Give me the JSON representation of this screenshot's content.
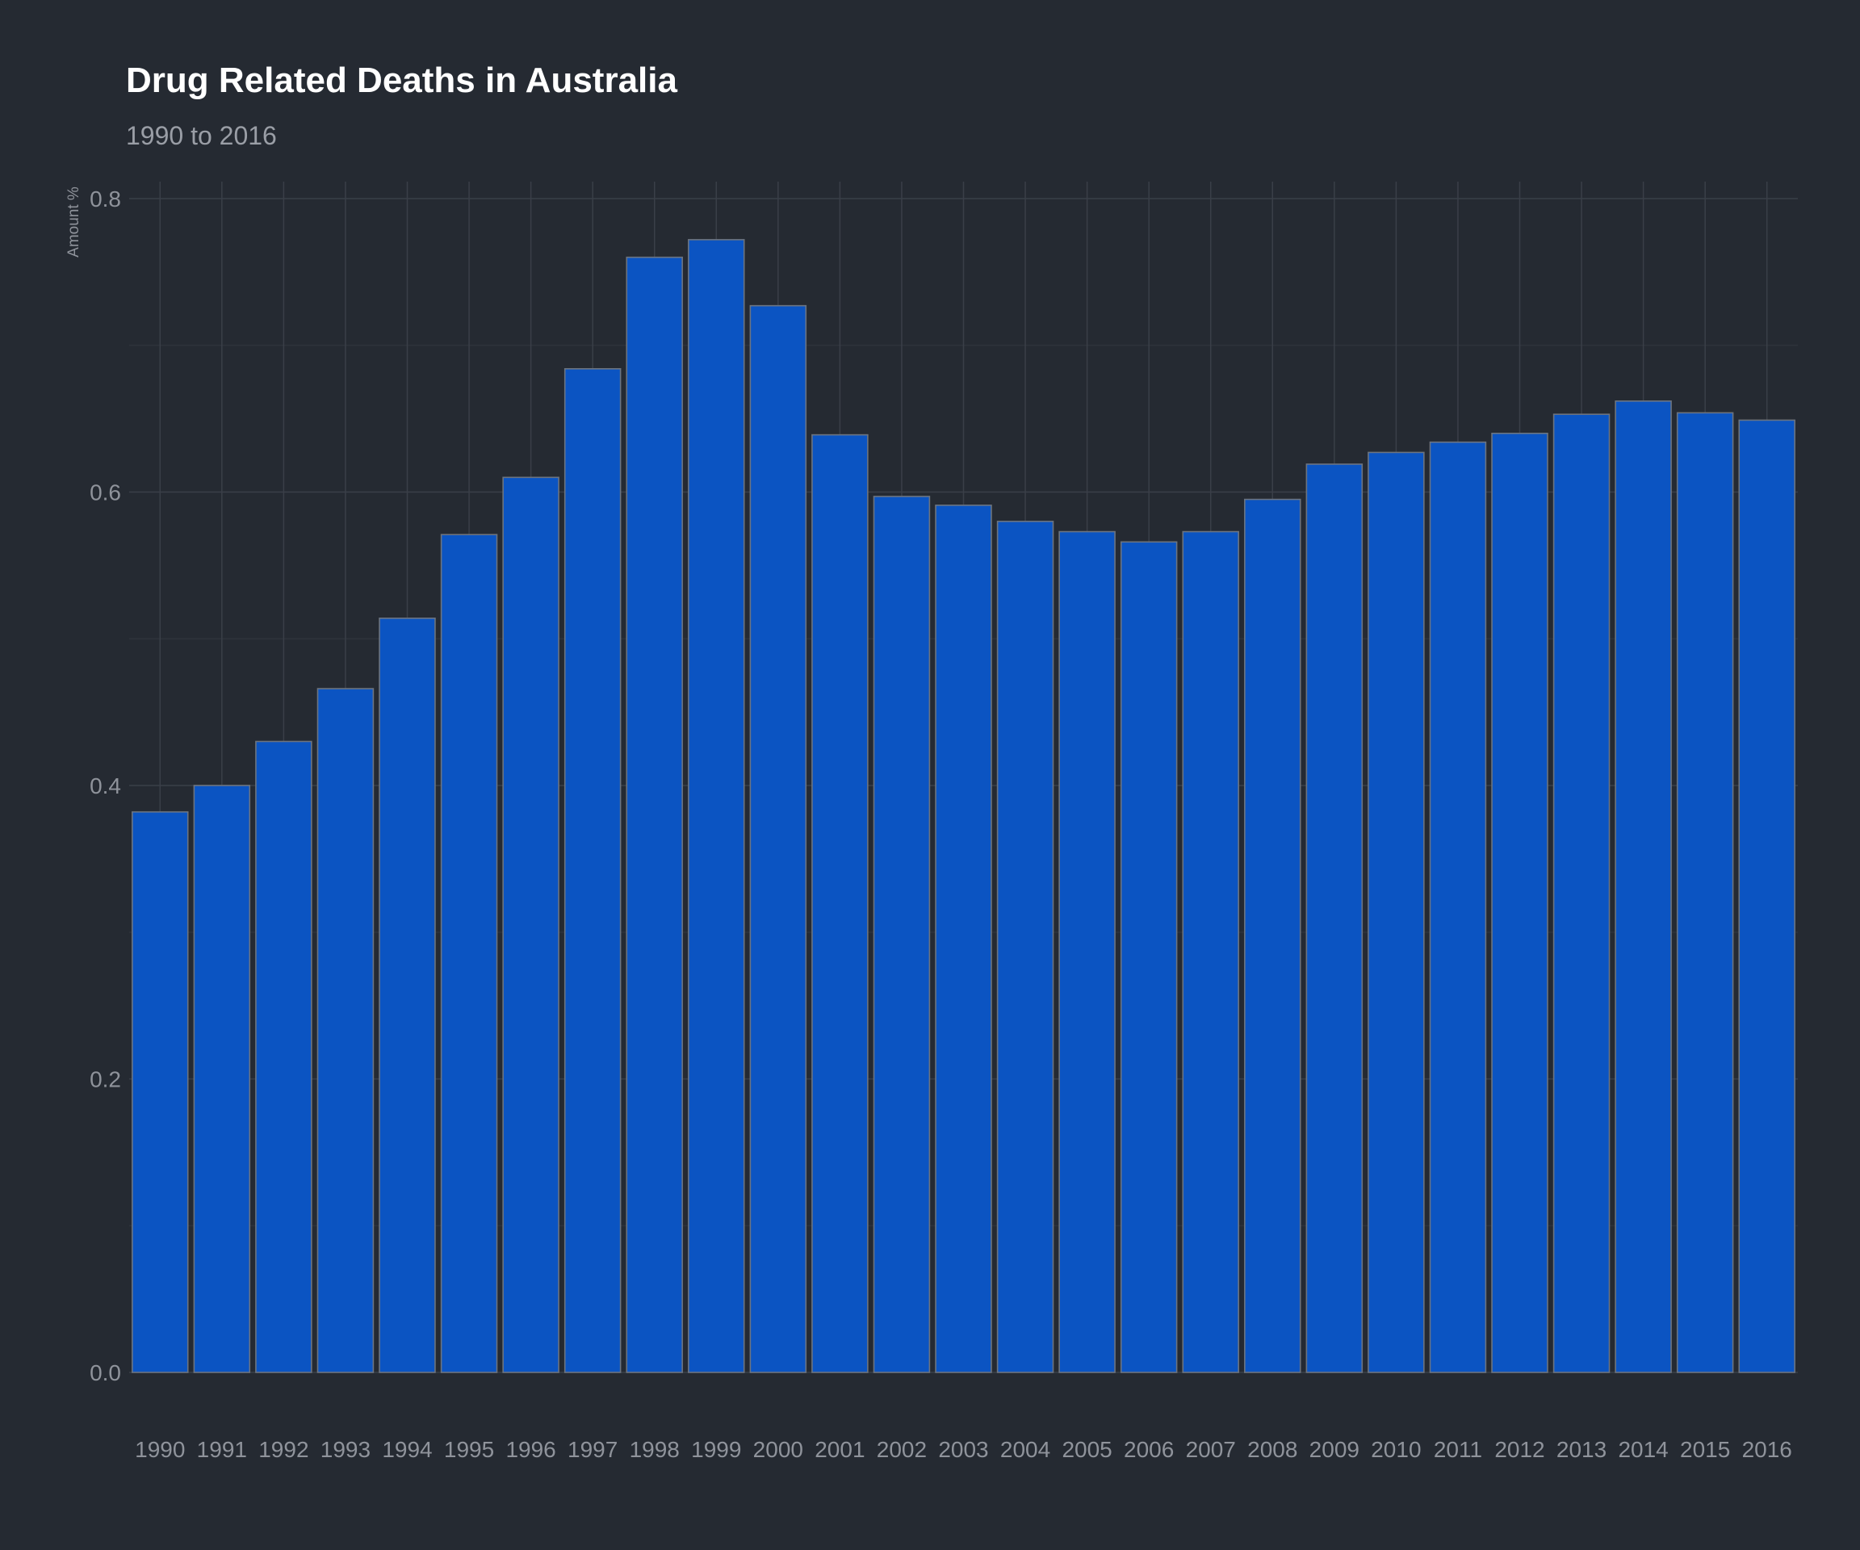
{
  "chart_data": {
    "type": "bar",
    "title": "Drug Related Deaths in Australia",
    "subtitle": "1990 to 2016",
    "xlabel": "",
    "ylabel": "Amount %",
    "ylim": [
      0,
      0.8
    ],
    "yticks": [
      "0.0",
      "0.2",
      "0.4",
      "0.6",
      "0.8"
    ],
    "grid": true,
    "bar_color": "#0b54c2",
    "categories": [
      "1990",
      "1991",
      "1992",
      "1993",
      "1994",
      "1995",
      "1996",
      "1997",
      "1998",
      "1999",
      "2000",
      "2001",
      "2002",
      "2003",
      "2004",
      "2005",
      "2006",
      "2007",
      "2008",
      "2009",
      "2010",
      "2011",
      "2012",
      "2013",
      "2014",
      "2015",
      "2016"
    ],
    "values": [
      0.382,
      0.4,
      0.43,
      0.466,
      0.514,
      0.571,
      0.61,
      0.684,
      0.76,
      0.772,
      0.727,
      0.639,
      0.597,
      0.591,
      0.58,
      0.573,
      0.566,
      0.573,
      0.595,
      0.619,
      0.627,
      0.634,
      0.64,
      0.653,
      0.662,
      0.654,
      0.649
    ]
  }
}
